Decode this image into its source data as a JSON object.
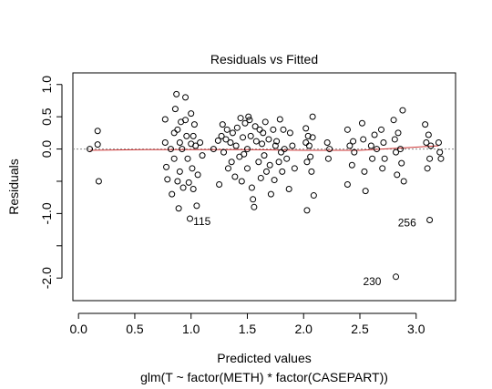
{
  "chart_data": {
    "type": "scatter",
    "title": "Residuals vs Fitted",
    "xlabel": "Predicted values",
    "ylabel": "Residuals",
    "caption": "glm(T ~ factor(METH) * factor(CASEPART))",
    "xlim": [
      -0.05,
      3.35
    ],
    "ylim": [
      -2.35,
      1.18
    ],
    "x_ticks": [
      0.0,
      0.5,
      1.0,
      1.5,
      2.0,
      2.5,
      3.0
    ],
    "x_tick_labels": [
      "0.0",
      "0.5",
      "1.0",
      "1.5",
      "2.0",
      "2.5",
      "3.0"
    ],
    "y_ticks": [
      -2.0,
      -1.5,
      -1.0,
      -0.5,
      0.0,
      0.5,
      1.0
    ],
    "y_tick_labels": [
      "-2.0",
      "",
      "-1.0",
      "",
      "0.0",
      "0.5",
      "1.0"
    ],
    "reference_line": {
      "y": 0,
      "style": "dotted",
      "color": "#888888"
    },
    "smooth_line": {
      "color": "#cc3333",
      "x": [
        0.1,
        0.6,
        1.0,
        1.5,
        2.0,
        2.5,
        3.0,
        3.2
      ],
      "y": [
        -0.02,
        -0.01,
        -0.01,
        -0.01,
        -0.02,
        -0.02,
        0.03,
        0.05
      ]
    },
    "points": {
      "x": [
        0.1,
        0.17,
        0.17,
        0.18,
        0.77,
        0.77,
        0.78,
        0.79,
        0.82,
        0.83,
        0.85,
        0.85,
        0.86,
        0.87,
        0.88,
        0.88,
        0.89,
        0.9,
        0.9,
        0.91,
        0.92,
        0.93,
        0.95,
        0.95,
        0.96,
        0.97,
        0.98,
        0.99,
        1.0,
        1.0,
        1.01,
        1.02,
        1.02,
        1.03,
        1.04,
        1.05,
        1.06,
        1.08,
        1.1,
        1.2,
        1.24,
        1.25,
        1.27,
        1.28,
        1.29,
        1.31,
        1.32,
        1.33,
        1.35,
        1.36,
        1.37,
        1.39,
        1.4,
        1.41,
        1.43,
        1.44,
        1.45,
        1.46,
        1.47,
        1.48,
        1.5,
        1.5,
        1.51,
        1.52,
        1.53,
        1.54,
        1.55,
        1.56,
        1.57,
        1.58,
        1.6,
        1.61,
        1.62,
        1.63,
        1.64,
        1.65,
        1.66,
        1.67,
        1.69,
        1.7,
        1.71,
        1.73,
        1.74,
        1.75,
        1.76,
        1.78,
        1.79,
        1.8,
        1.81,
        1.82,
        1.83,
        1.85,
        1.87,
        1.88,
        1.9,
        1.92,
        2.02,
        2.02,
        2.03,
        2.03,
        2.04,
        2.05,
        2.06,
        2.07,
        2.08,
        2.08,
        2.09,
        2.21,
        2.22,
        2.23,
        2.39,
        2.39,
        2.41,
        2.43,
        2.44,
        2.45,
        2.52,
        2.53,
        2.54,
        2.55,
        2.6,
        2.61,
        2.63,
        2.65,
        2.69,
        2.7,
        2.71,
        2.72,
        2.8,
        2.81,
        2.82,
        2.83,
        2.84,
        2.86,
        2.87,
        2.88,
        2.89,
        3.08,
        3.09,
        3.1,
        3.11,
        3.12,
        3.13,
        3.2,
        3.21,
        3.22,
        3.12,
        2.82
      ],
      "y": [
        0.0,
        0.28,
        0.07,
        -0.5,
        0.46,
        0.1,
        -0.28,
        -0.47,
        0.0,
        -0.7,
        0.25,
        -0.15,
        0.62,
        0.85,
        0.3,
        -0.5,
        -0.92,
        0.1,
        -0.35,
        0.42,
        0.0,
        -0.6,
        0.8,
        0.45,
        0.2,
        -0.15,
        -0.52,
        -1.08,
        0.55,
        0.08,
        -0.3,
        0.2,
        -0.62,
        0.38,
        0.05,
        -0.88,
        -0.4,
        0.1,
        -0.1,
        0.0,
        0.13,
        -0.55,
        0.2,
        0.38,
        -0.05,
        0.15,
        0.3,
        -0.3,
        0.1,
        -0.2,
        0.25,
        -0.43,
        0.05,
        0.33,
        -0.12,
        0.48,
        -0.5,
        0.18,
        -0.08,
        0.4,
        0.0,
        -0.3,
        0.5,
        0.45,
        0.2,
        -0.6,
        -0.78,
        -0.9,
        0.35,
        0.12,
        -0.2,
        0.3,
        -0.45,
        0.08,
        0.25,
        -0.1,
        0.42,
        -0.35,
        0.15,
        -0.25,
        -0.7,
        0.3,
        -0.48,
        0.05,
        0.12,
        -0.2,
        0.46,
        -0.05,
        -0.35,
        0.3,
        0.0,
        -0.15,
        -0.62,
        0.25,
        0.05,
        -0.3,
        0.32,
        0.1,
        -0.2,
        -0.95,
        0.2,
        0.05,
        -0.12,
        -0.35,
        0.5,
        0.18,
        -0.72,
        0.1,
        -0.15,
        0.0,
        0.3,
        -0.55,
        0.05,
        -0.25,
        0.12,
        -0.05,
        0.4,
        0.15,
        -0.35,
        -0.65,
        0.05,
        -0.15,
        0.22,
        0.0,
        0.3,
        -0.3,
        0.1,
        -0.15,
        0.45,
        0.15,
        -0.05,
        -0.4,
        0.25,
        0.0,
        -0.22,
        0.6,
        -0.5,
        0.38,
        0.1,
        -0.3,
        0.22,
        -0.15,
        0.05,
        0.1,
        -0.05,
        -0.15,
        -1.1,
        -1.98
      ]
    },
    "annotations": [
      {
        "label": "115",
        "x": 1.02,
        "y": -1.12
      },
      {
        "label": "256",
        "x": 3.0,
        "y": -1.14
      },
      {
        "label": "230",
        "x": 2.69,
        "y": -2.05
      }
    ]
  }
}
